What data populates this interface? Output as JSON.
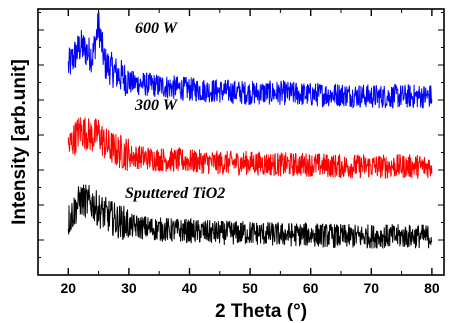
{
  "chart_data": {
    "type": "line",
    "xlabel": "2 Theta (°)",
    "ylabel": "Intensity [arb.unit]",
    "xlim": [
      15,
      82
    ],
    "xticks": [
      20,
      30,
      40,
      50,
      60,
      70,
      80
    ],
    "yticks_labeled": false,
    "grid": false,
    "series": [
      {
        "name": "600 W",
        "color": "#0000ff",
        "x": [
          20,
          22,
          24,
          25,
          26,
          28,
          30,
          35,
          40,
          45,
          50,
          55,
          60,
          65,
          70,
          75,
          80
        ],
        "values": [
          5.8,
          6.4,
          6.1,
          7.0,
          5.9,
          5.6,
          5.4,
          5.3,
          5.2,
          5.15,
          5.1,
          5.1,
          5.05,
          5.05,
          5.0,
          5.0,
          5.0
        ]
      },
      {
        "name": "300 W",
        "color": "#ff0000",
        "x": [
          20,
          22,
          24,
          25,
          26,
          28,
          30,
          35,
          40,
          45,
          50,
          55,
          60,
          65,
          70,
          75,
          80
        ],
        "values": [
          3.5,
          4.0,
          3.8,
          3.9,
          3.6,
          3.4,
          3.3,
          3.2,
          3.15,
          3.1,
          3.1,
          3.05,
          3.05,
          3.0,
          3.0,
          3.0,
          3.0
        ]
      },
      {
        "name": "Sputtered TiO2",
        "color": "#000000",
        "x": [
          20,
          22,
          24,
          25,
          26,
          28,
          30,
          35,
          40,
          45,
          50,
          55,
          60,
          65,
          70,
          75,
          80
        ],
        "values": [
          1.4,
          2.0,
          1.9,
          1.7,
          1.6,
          1.4,
          1.3,
          1.2,
          1.15,
          1.1,
          1.1,
          1.05,
          1.05,
          1.0,
          1.0,
          1.0,
          1.0
        ]
      }
    ]
  }
}
